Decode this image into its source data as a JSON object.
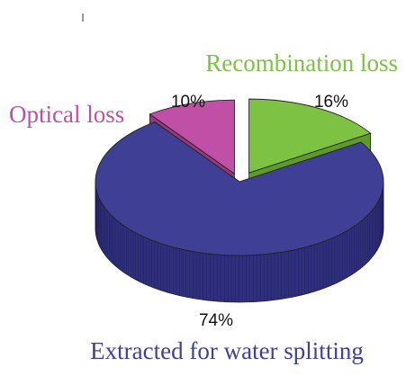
{
  "chart_data": {
    "type": "pie",
    "title": "",
    "slices": [
      {
        "label": "Recombination loss",
        "value": 16,
        "value_label": "16%",
        "color": "#7dc242",
        "side_color": "#5e9a2e"
      },
      {
        "label": "Extracted for water splitting",
        "value": 74,
        "value_label": "74%",
        "color": "#3f3f96",
        "side_color": "#2f2f7d"
      },
      {
        "label": "Optical loss",
        "value": 10,
        "value_label": "10%",
        "color": "#c050a6",
        "side_color": "#98387f"
      }
    ],
    "exploded": true,
    "three_d": true,
    "legend": "none"
  }
}
